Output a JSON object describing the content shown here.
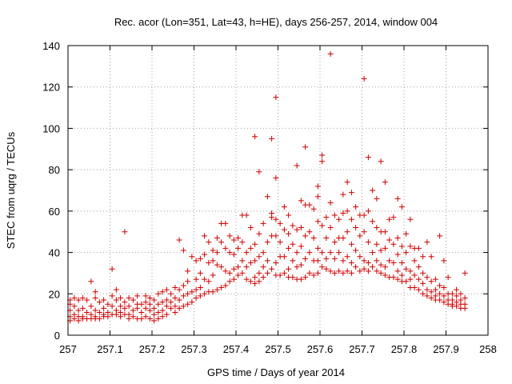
{
  "chart_data": {
    "type": "scatter",
    "title": "Rec. acor (Lon=351, Lat=43, h=HE), days 256-257, 2014, window 004",
    "xlabel": "GPS time / Days of year 2014",
    "ylabel": "STEC from uqrg / TECUs",
    "xlim": [
      257,
      258
    ],
    "ylim": [
      0,
      140
    ],
    "xticks": [
      "257",
      "257.1",
      "257.2",
      "257.3",
      "257.4",
      "257.5",
      "257.6",
      "257.7",
      "257.8",
      "257.9",
      "258"
    ],
    "yticks": [
      "0",
      "20",
      "40",
      "60",
      "80",
      "100",
      "120",
      "140"
    ],
    "grid": true,
    "marker": "+",
    "color": "#cc0000",
    "points": [
      [
        257.005,
        17
      ],
      [
        257.005,
        15
      ],
      [
        257.005,
        12
      ],
      [
        257.005,
        9
      ],
      [
        257.005,
        7
      ],
      [
        257.015,
        18
      ],
      [
        257.015,
        14
      ],
      [
        257.015,
        10
      ],
      [
        257.015,
        8
      ],
      [
        257.025,
        17
      ],
      [
        257.025,
        12
      ],
      [
        257.025,
        9
      ],
      [
        257.025,
        7
      ],
      [
        257.035,
        18
      ],
      [
        257.035,
        13
      ],
      [
        257.035,
        9
      ],
      [
        257.035,
        8
      ],
      [
        257.045,
        17
      ],
      [
        257.045,
        11
      ],
      [
        257.045,
        8
      ],
      [
        257.055,
        26
      ],
      [
        257.055,
        14
      ],
      [
        257.055,
        10
      ],
      [
        257.055,
        8
      ],
      [
        257.065,
        21
      ],
      [
        257.065,
        18
      ],
      [
        257.065,
        12
      ],
      [
        257.065,
        9
      ],
      [
        257.065,
        8
      ],
      [
        257.075,
        16
      ],
      [
        257.075,
        11
      ],
      [
        257.075,
        8
      ],
      [
        257.085,
        17
      ],
      [
        257.085,
        13
      ],
      [
        257.085,
        10
      ],
      [
        257.085,
        9
      ],
      [
        257.095,
        15
      ],
      [
        257.095,
        11
      ],
      [
        257.095,
        9
      ],
      [
        257.105,
        32
      ],
      [
        257.105,
        19
      ],
      [
        257.105,
        14
      ],
      [
        257.105,
        10
      ],
      [
        257.115,
        22
      ],
      [
        257.115,
        17
      ],
      [
        257.115,
        12
      ],
      [
        257.115,
        10
      ],
      [
        257.125,
        18
      ],
      [
        257.125,
        14
      ],
      [
        257.125,
        11
      ],
      [
        257.125,
        9
      ],
      [
        257.135,
        50
      ],
      [
        257.135,
        16
      ],
      [
        257.135,
        13
      ],
      [
        257.135,
        10
      ],
      [
        257.145,
        18
      ],
      [
        257.145,
        14
      ],
      [
        257.145,
        10
      ],
      [
        257.145,
        8
      ],
      [
        257.155,
        17
      ],
      [
        257.155,
        12
      ],
      [
        257.155,
        9
      ],
      [
        257.165,
        19
      ],
      [
        257.165,
        15
      ],
      [
        257.165,
        13
      ],
      [
        257.165,
        8
      ],
      [
        257.175,
        15
      ],
      [
        257.175,
        11
      ],
      [
        257.175,
        8
      ],
      [
        257.185,
        19
      ],
      [
        257.185,
        16
      ],
      [
        257.185,
        13
      ],
      [
        257.185,
        9
      ],
      [
        257.195,
        18
      ],
      [
        257.195,
        15
      ],
      [
        257.195,
        12
      ],
      [
        257.195,
        8
      ],
      [
        257.205,
        17
      ],
      [
        257.205,
        13
      ],
      [
        257.205,
        10
      ],
      [
        257.205,
        7
      ],
      [
        257.215,
        20
      ],
      [
        257.215,
        15
      ],
      [
        257.215,
        11
      ],
      [
        257.215,
        8
      ],
      [
        257.225,
        21
      ],
      [
        257.225,
        16
      ],
      [
        257.225,
        12
      ],
      [
        257.225,
        9
      ],
      [
        257.235,
        22
      ],
      [
        257.235,
        17
      ],
      [
        257.235,
        14
      ],
      [
        257.235,
        10
      ],
      [
        257.245,
        20
      ],
      [
        257.245,
        16
      ],
      [
        257.245,
        13
      ],
      [
        257.255,
        23
      ],
      [
        257.255,
        18
      ],
      [
        257.255,
        14
      ],
      [
        257.255,
        11
      ],
      [
        257.265,
        46
      ],
      [
        257.265,
        22
      ],
      [
        257.265,
        17
      ],
      [
        257.265,
        13
      ],
      [
        257.275,
        41
      ],
      [
        257.275,
        24
      ],
      [
        257.275,
        19
      ],
      [
        257.275,
        14
      ],
      [
        257.285,
        31
      ],
      [
        257.285,
        26
      ],
      [
        257.285,
        20
      ],
      [
        257.285,
        15
      ],
      [
        257.295,
        38
      ],
      [
        257.295,
        21
      ],
      [
        257.295,
        16
      ],
      [
        257.305,
        36
      ],
      [
        257.305,
        27
      ],
      [
        257.305,
        22
      ],
      [
        257.305,
        18
      ],
      [
        257.315,
        37
      ],
      [
        257.315,
        30
      ],
      [
        257.315,
        23
      ],
      [
        257.315,
        19
      ],
      [
        257.325,
        48
      ],
      [
        257.325,
        39
      ],
      [
        257.325,
        27
      ],
      [
        257.325,
        20
      ],
      [
        257.335,
        45
      ],
      [
        257.335,
        35
      ],
      [
        257.335,
        26
      ],
      [
        257.335,
        21
      ],
      [
        257.345,
        41
      ],
      [
        257.345,
        36
      ],
      [
        257.345,
        29
      ],
      [
        257.345,
        21
      ],
      [
        257.355,
        47
      ],
      [
        257.355,
        40
      ],
      [
        257.355,
        34
      ],
      [
        257.355,
        22
      ],
      [
        257.365,
        54
      ],
      [
        257.365,
        45
      ],
      [
        257.365,
        33
      ],
      [
        257.365,
        23
      ],
      [
        257.375,
        54
      ],
      [
        257.375,
        42
      ],
      [
        257.375,
        31
      ],
      [
        257.375,
        24
      ],
      [
        257.385,
        48
      ],
      [
        257.385,
        40
      ],
      [
        257.385,
        30
      ],
      [
        257.385,
        26
      ],
      [
        257.395,
        46
      ],
      [
        257.395,
        39
      ],
      [
        257.395,
        32
      ],
      [
        257.395,
        27
      ],
      [
        257.405,
        47
      ],
      [
        257.405,
        42
      ],
      [
        257.405,
        33
      ],
      [
        257.405,
        29
      ],
      [
        257.415,
        58
      ],
      [
        257.415,
        45
      ],
      [
        257.415,
        36
      ],
      [
        257.415,
        30
      ],
      [
        257.425,
        58
      ],
      [
        257.425,
        40
      ],
      [
        257.425,
        33
      ],
      [
        257.425,
        27
      ],
      [
        257.435,
        52
      ],
      [
        257.435,
        42
      ],
      [
        257.435,
        35
      ],
      [
        257.435,
        26
      ],
      [
        257.445,
        96
      ],
      [
        257.445,
        44
      ],
      [
        257.445,
        36
      ],
      [
        257.445,
        28
      ],
      [
        257.445,
        25
      ],
      [
        257.455,
        79
      ],
      [
        257.455,
        49
      ],
      [
        257.455,
        38
      ],
      [
        257.455,
        30
      ],
      [
        257.455,
        26
      ],
      [
        257.465,
        54
      ],
      [
        257.465,
        40
      ],
      [
        257.465,
        33
      ],
      [
        257.465,
        28
      ],
      [
        257.475,
        67
      ],
      [
        257.475,
        45
      ],
      [
        257.475,
        36
      ],
      [
        257.475,
        30
      ],
      [
        257.485,
        95
      ],
      [
        257.485,
        59
      ],
      [
        257.485,
        57
      ],
      [
        257.485,
        48
      ],
      [
        257.485,
        32
      ],
      [
        257.495,
        115
      ],
      [
        257.495,
        76
      ],
      [
        257.495,
        56
      ],
      [
        257.495,
        48
      ],
      [
        257.495,
        35
      ],
      [
        257.495,
        29
      ],
      [
        257.505,
        54
      ],
      [
        257.505,
        45
      ],
      [
        257.505,
        38
      ],
      [
        257.505,
        29
      ],
      [
        257.515,
        62
      ],
      [
        257.515,
        51
      ],
      [
        257.515,
        38
      ],
      [
        257.515,
        30
      ],
      [
        257.525,
        58
      ],
      [
        257.525,
        49
      ],
      [
        257.525,
        42
      ],
      [
        257.525,
        32
      ],
      [
        257.525,
        28
      ],
      [
        257.535,
        53
      ],
      [
        257.535,
        44
      ],
      [
        257.535,
        36
      ],
      [
        257.535,
        28
      ],
      [
        257.545,
        82
      ],
      [
        257.545,
        51
      ],
      [
        257.545,
        40
      ],
      [
        257.545,
        33
      ],
      [
        257.545,
        27
      ],
      [
        257.555,
        65
      ],
      [
        257.555,
        52
      ],
      [
        257.555,
        43
      ],
      [
        257.555,
        34
      ],
      [
        257.555,
        27
      ],
      [
        257.565,
        91
      ],
      [
        257.565,
        63
      ],
      [
        257.565,
        48
      ],
      [
        257.565,
        37
      ],
      [
        257.565,
        28
      ],
      [
        257.575,
        63
      ],
      [
        257.575,
        50
      ],
      [
        257.575,
        40
      ],
      [
        257.575,
        30
      ],
      [
        257.585,
        61
      ],
      [
        257.585,
        47
      ],
      [
        257.585,
        36
      ],
      [
        257.585,
        29
      ],
      [
        257.595,
        72
      ],
      [
        257.595,
        67
      ],
      [
        257.595,
        55
      ],
      [
        257.595,
        42
      ],
      [
        257.595,
        36
      ],
      [
        257.595,
        30
      ],
      [
        257.605,
        87
      ],
      [
        257.605,
        84
      ],
      [
        257.605,
        53
      ],
      [
        257.605,
        40
      ],
      [
        257.605,
        33
      ],
      [
        257.615,
        57
      ],
      [
        257.615,
        47
      ],
      [
        257.615,
        37
      ],
      [
        257.615,
        32
      ],
      [
        257.625,
        136
      ],
      [
        257.625,
        64
      ],
      [
        257.625,
        52
      ],
      [
        257.625,
        40
      ],
      [
        257.625,
        31
      ],
      [
        257.635,
        58
      ],
      [
        257.635,
        45
      ],
      [
        257.635,
        37
      ],
      [
        257.635,
        30
      ],
      [
        257.645,
        56
      ],
      [
        257.645,
        47
      ],
      [
        257.645,
        40
      ],
      [
        257.645,
        31
      ],
      [
        257.655,
        68
      ],
      [
        257.655,
        59
      ],
      [
        257.655,
        47
      ],
      [
        257.655,
        36
      ],
      [
        257.655,
        30
      ],
      [
        257.665,
        74
      ],
      [
        257.665,
        60
      ],
      [
        257.665,
        50
      ],
      [
        257.665,
        38
      ],
      [
        257.665,
        31
      ],
      [
        257.675,
        69
      ],
      [
        257.675,
        56
      ],
      [
        257.675,
        44
      ],
      [
        257.675,
        35
      ],
      [
        257.675,
        30
      ],
      [
        257.685,
        62
      ],
      [
        257.685,
        52
      ],
      [
        257.685,
        41
      ],
      [
        257.685,
        33
      ],
      [
        257.695,
        58
      ],
      [
        257.695,
        48
      ],
      [
        257.695,
        38
      ],
      [
        257.695,
        31
      ],
      [
        257.705,
        124
      ],
      [
        257.705,
        58
      ],
      [
        257.705,
        50
      ],
      [
        257.705,
        36
      ],
      [
        257.705,
        32
      ],
      [
        257.715,
        86
      ],
      [
        257.715,
        60
      ],
      [
        257.715,
        45
      ],
      [
        257.715,
        35
      ],
      [
        257.715,
        31
      ],
      [
        257.725,
        70
      ],
      [
        257.725,
        55
      ],
      [
        257.725,
        40
      ],
      [
        257.725,
        33
      ],
      [
        257.735,
        66
      ],
      [
        257.735,
        52
      ],
      [
        257.735,
        44
      ],
      [
        257.735,
        36
      ],
      [
        257.735,
        31
      ],
      [
        257.745,
        84
      ],
      [
        257.745,
        50
      ],
      [
        257.745,
        41
      ],
      [
        257.745,
        34
      ],
      [
        257.745,
        30
      ],
      [
        257.755,
        74
      ],
      [
        257.755,
        50
      ],
      [
        257.755,
        42
      ],
      [
        257.755,
        33
      ],
      [
        257.755,
        29
      ],
      [
        257.765,
        56
      ],
      [
        257.765,
        46
      ],
      [
        257.765,
        36
      ],
      [
        257.765,
        28
      ],
      [
        257.775,
        57
      ],
      [
        257.775,
        44
      ],
      [
        257.775,
        35
      ],
      [
        257.775,
        28
      ],
      [
        257.785,
        66
      ],
      [
        257.785,
        47
      ],
      [
        257.785,
        39
      ],
      [
        257.785,
        31
      ],
      [
        257.785,
        27
      ],
      [
        257.795,
        62
      ],
      [
        257.795,
        43
      ],
      [
        257.795,
        35
      ],
      [
        257.795,
        29
      ],
      [
        257.795,
        26
      ],
      [
        257.805,
        49
      ],
      [
        257.805,
        40
      ],
      [
        257.805,
        32
      ],
      [
        257.805,
        26
      ],
      [
        257.815,
        56
      ],
      [
        257.815,
        43
      ],
      [
        257.815,
        31
      ],
      [
        257.815,
        27
      ],
      [
        257.815,
        23
      ],
      [
        257.825,
        42
      ],
      [
        257.825,
        36
      ],
      [
        257.825,
        29
      ],
      [
        257.825,
        23
      ],
      [
        257.835,
        42
      ],
      [
        257.835,
        33
      ],
      [
        257.835,
        27
      ],
      [
        257.835,
        22
      ],
      [
        257.845,
        38
      ],
      [
        257.845,
        30
      ],
      [
        257.845,
        25
      ],
      [
        257.845,
        20
      ],
      [
        257.855,
        45
      ],
      [
        257.855,
        28
      ],
      [
        257.855,
        22
      ],
      [
        257.855,
        19
      ],
      [
        257.865,
        38
      ],
      [
        257.865,
        26
      ],
      [
        257.865,
        21
      ],
      [
        257.865,
        18
      ],
      [
        257.875,
        27
      ],
      [
        257.875,
        22
      ],
      [
        257.875,
        19
      ],
      [
        257.875,
        17
      ],
      [
        257.885,
        48
      ],
      [
        257.885,
        24
      ],
      [
        257.885,
        20
      ],
      [
        257.885,
        17
      ],
      [
        257.895,
        36
      ],
      [
        257.895,
        23
      ],
      [
        257.895,
        19
      ],
      [
        257.895,
        16
      ],
      [
        257.905,
        28
      ],
      [
        257.905,
        20
      ],
      [
        257.905,
        17
      ],
      [
        257.905,
        15
      ],
      [
        257.915,
        20
      ],
      [
        257.915,
        17
      ],
      [
        257.915,
        15
      ],
      [
        257.915,
        14
      ],
      [
        257.925,
        22
      ],
      [
        257.925,
        19
      ],
      [
        257.925,
        16
      ],
      [
        257.925,
        14
      ],
      [
        257.935,
        20
      ],
      [
        257.935,
        17
      ],
      [
        257.935,
        15
      ],
      [
        257.935,
        13
      ],
      [
        257.945,
        30
      ],
      [
        257.945,
        18
      ],
      [
        257.945,
        15
      ],
      [
        257.945,
        13
      ]
    ]
  }
}
